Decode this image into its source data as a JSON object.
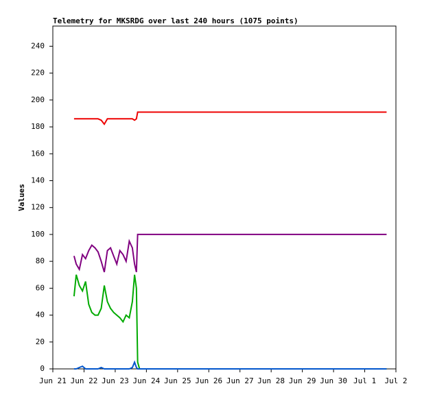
{
  "chart_data": {
    "type": "line",
    "title": "Telemetry for MKSRDG over last 240 hours (1075 points)",
    "y_label": "Values",
    "x": [
      0.68,
      0.75,
      0.85,
      0.95,
      1.05,
      1.15,
      1.25,
      1.35,
      1.45,
      1.55,
      1.65,
      1.75,
      1.85,
      1.95,
      2.05,
      2.15,
      2.25,
      2.35,
      2.45,
      2.55,
      2.62,
      2.68,
      2.72,
      2.78,
      10.7
    ],
    "series": [
      {
        "color": "#ee0000",
        "values": [
          186,
          186,
          186,
          186,
          186,
          186,
          186,
          186,
          186,
          185,
          182,
          186,
          186,
          186,
          186,
          186,
          186,
          186,
          186,
          186,
          185,
          186,
          191,
          191,
          191
        ]
      },
      {
        "color": "#800080",
        "values": [
          84,
          78,
          74,
          85,
          82,
          88,
          92,
          90,
          87,
          80,
          72,
          88,
          90,
          84,
          78,
          88,
          85,
          80,
          95,
          90,
          78,
          72,
          100,
          100,
          100
        ]
      },
      {
        "color": "#00aa00",
        "values": [
          54,
          70,
          62,
          58,
          65,
          48,
          42,
          40,
          40,
          45,
          62,
          50,
          45,
          42,
          40,
          38,
          35,
          40,
          38,
          50,
          70,
          60,
          5,
          0,
          0
        ]
      },
      {
        "color": "#0055cc",
        "values": [
          0,
          0,
          1,
          2,
          0,
          0,
          0,
          0,
          0,
          1,
          0,
          0,
          0,
          0,
          0,
          0,
          0,
          0,
          0,
          1,
          5,
          1,
          0,
          0,
          0
        ]
      }
    ],
    "xlim": [
      0,
      11
    ],
    "xticks": [
      {
        "value": 0,
        "label": "Jun 21"
      },
      {
        "value": 1,
        "label": "Jun 22"
      },
      {
        "value": 2,
        "label": "Jun 23"
      },
      {
        "value": 3,
        "label": "Jun 24"
      },
      {
        "value": 4,
        "label": "Jun 25"
      },
      {
        "value": 5,
        "label": "Jun 26"
      },
      {
        "value": 6,
        "label": "Jun 27"
      },
      {
        "value": 7,
        "label": "Jun 28"
      },
      {
        "value": 8,
        "label": "Jun 29"
      },
      {
        "value": 9,
        "label": "Jun 30"
      },
      {
        "value": 10,
        "label": "Jul 1"
      },
      {
        "value": 11,
        "label": "Jul 2"
      }
    ],
    "ylim": [
      0,
      255
    ],
    "yticks": [
      0,
      20,
      40,
      60,
      80,
      100,
      120,
      140,
      160,
      180,
      200,
      220,
      240
    ]
  }
}
